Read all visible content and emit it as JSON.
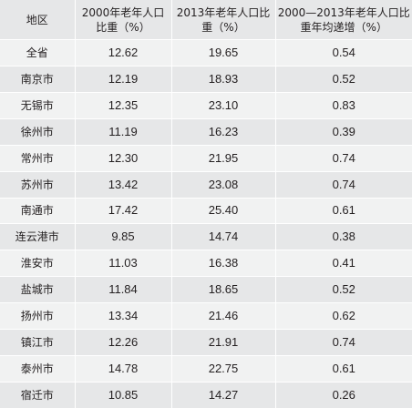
{
  "table": {
    "headers": [
      "地区",
      "2000年老年人口比重（%）",
      "2013年老年人口比重（%）",
      "2000—2013年老年人口比重年均递增（%）"
    ],
    "rows": [
      [
        "全省",
        "12.62",
        "19.65",
        "0.54"
      ],
      [
        "南京市",
        "12.19",
        "18.93",
        "0.52"
      ],
      [
        "无锡市",
        "12.35",
        "23.10",
        "0.83"
      ],
      [
        "徐州市",
        "11.19",
        "16.23",
        "0.39"
      ],
      [
        "常州市",
        "12.30",
        "21.95",
        "0.74"
      ],
      [
        "苏州市",
        "13.42",
        "23.08",
        "0.74"
      ],
      [
        "南通市",
        "17.42",
        "25.40",
        "0.61"
      ],
      [
        "连云港市",
        "9.85",
        "14.74",
        "0.38"
      ],
      [
        "淮安市",
        "11.03",
        "16.38",
        "0.41"
      ],
      [
        "盐城市",
        "11.84",
        "18.65",
        "0.52"
      ],
      [
        "扬州市",
        "13.34",
        "21.46",
        "0.62"
      ],
      [
        "镇江市",
        "12.26",
        "21.91",
        "0.74"
      ],
      [
        "泰州市",
        "14.78",
        "22.75",
        "0.61"
      ],
      [
        "宿迁市",
        "10.85",
        "14.27",
        "0.26"
      ]
    ]
  }
}
